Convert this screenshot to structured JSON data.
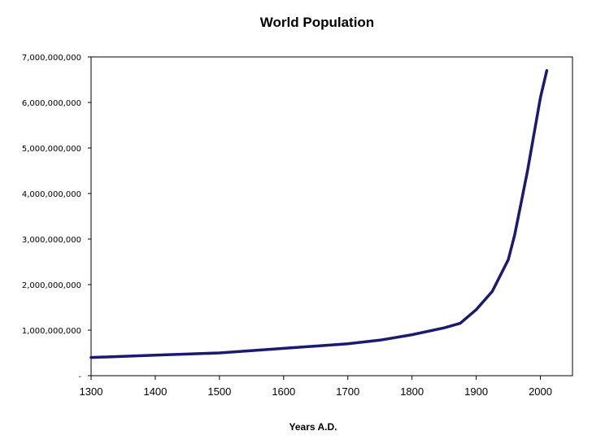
{
  "chart_data": {
    "type": "line",
    "title": "World Population",
    "xlabel": "Years A.D.",
    "ylabel": "",
    "xlim": [
      1300,
      2050
    ],
    "ylim": [
      0,
      7000000000
    ],
    "x_ticks": [
      "1300",
      "1400",
      "1500",
      "1600",
      "1700",
      "1800",
      "1900",
      "2000"
    ],
    "y_ticks": [
      "-",
      "1,000,000,000",
      "2,000,000,000",
      "3,000,000,000",
      "4,000,000,000",
      "5,000,000,000",
      "6,000,000,000",
      "7,000,000,000"
    ],
    "grid": false,
    "legend": "none",
    "line_color": "#1a1a6e",
    "series": [
      {
        "x": [
          1300,
          1400,
          1500,
          1600,
          1700,
          1750,
          1800,
          1850,
          1875,
          1900,
          1925,
          1950,
          1960,
          1970,
          1980,
          1990,
          2000,
          2010
        ],
        "values": [
          400000000,
          450000000,
          500000000,
          600000000,
          700000000,
          780000000,
          900000000,
          1050000000,
          1150000000,
          1450000000,
          1850000000,
          2550000000,
          3100000000,
          3800000000,
          4500000000,
          5300000000,
          6100000000,
          6700000000
        ]
      }
    ]
  }
}
